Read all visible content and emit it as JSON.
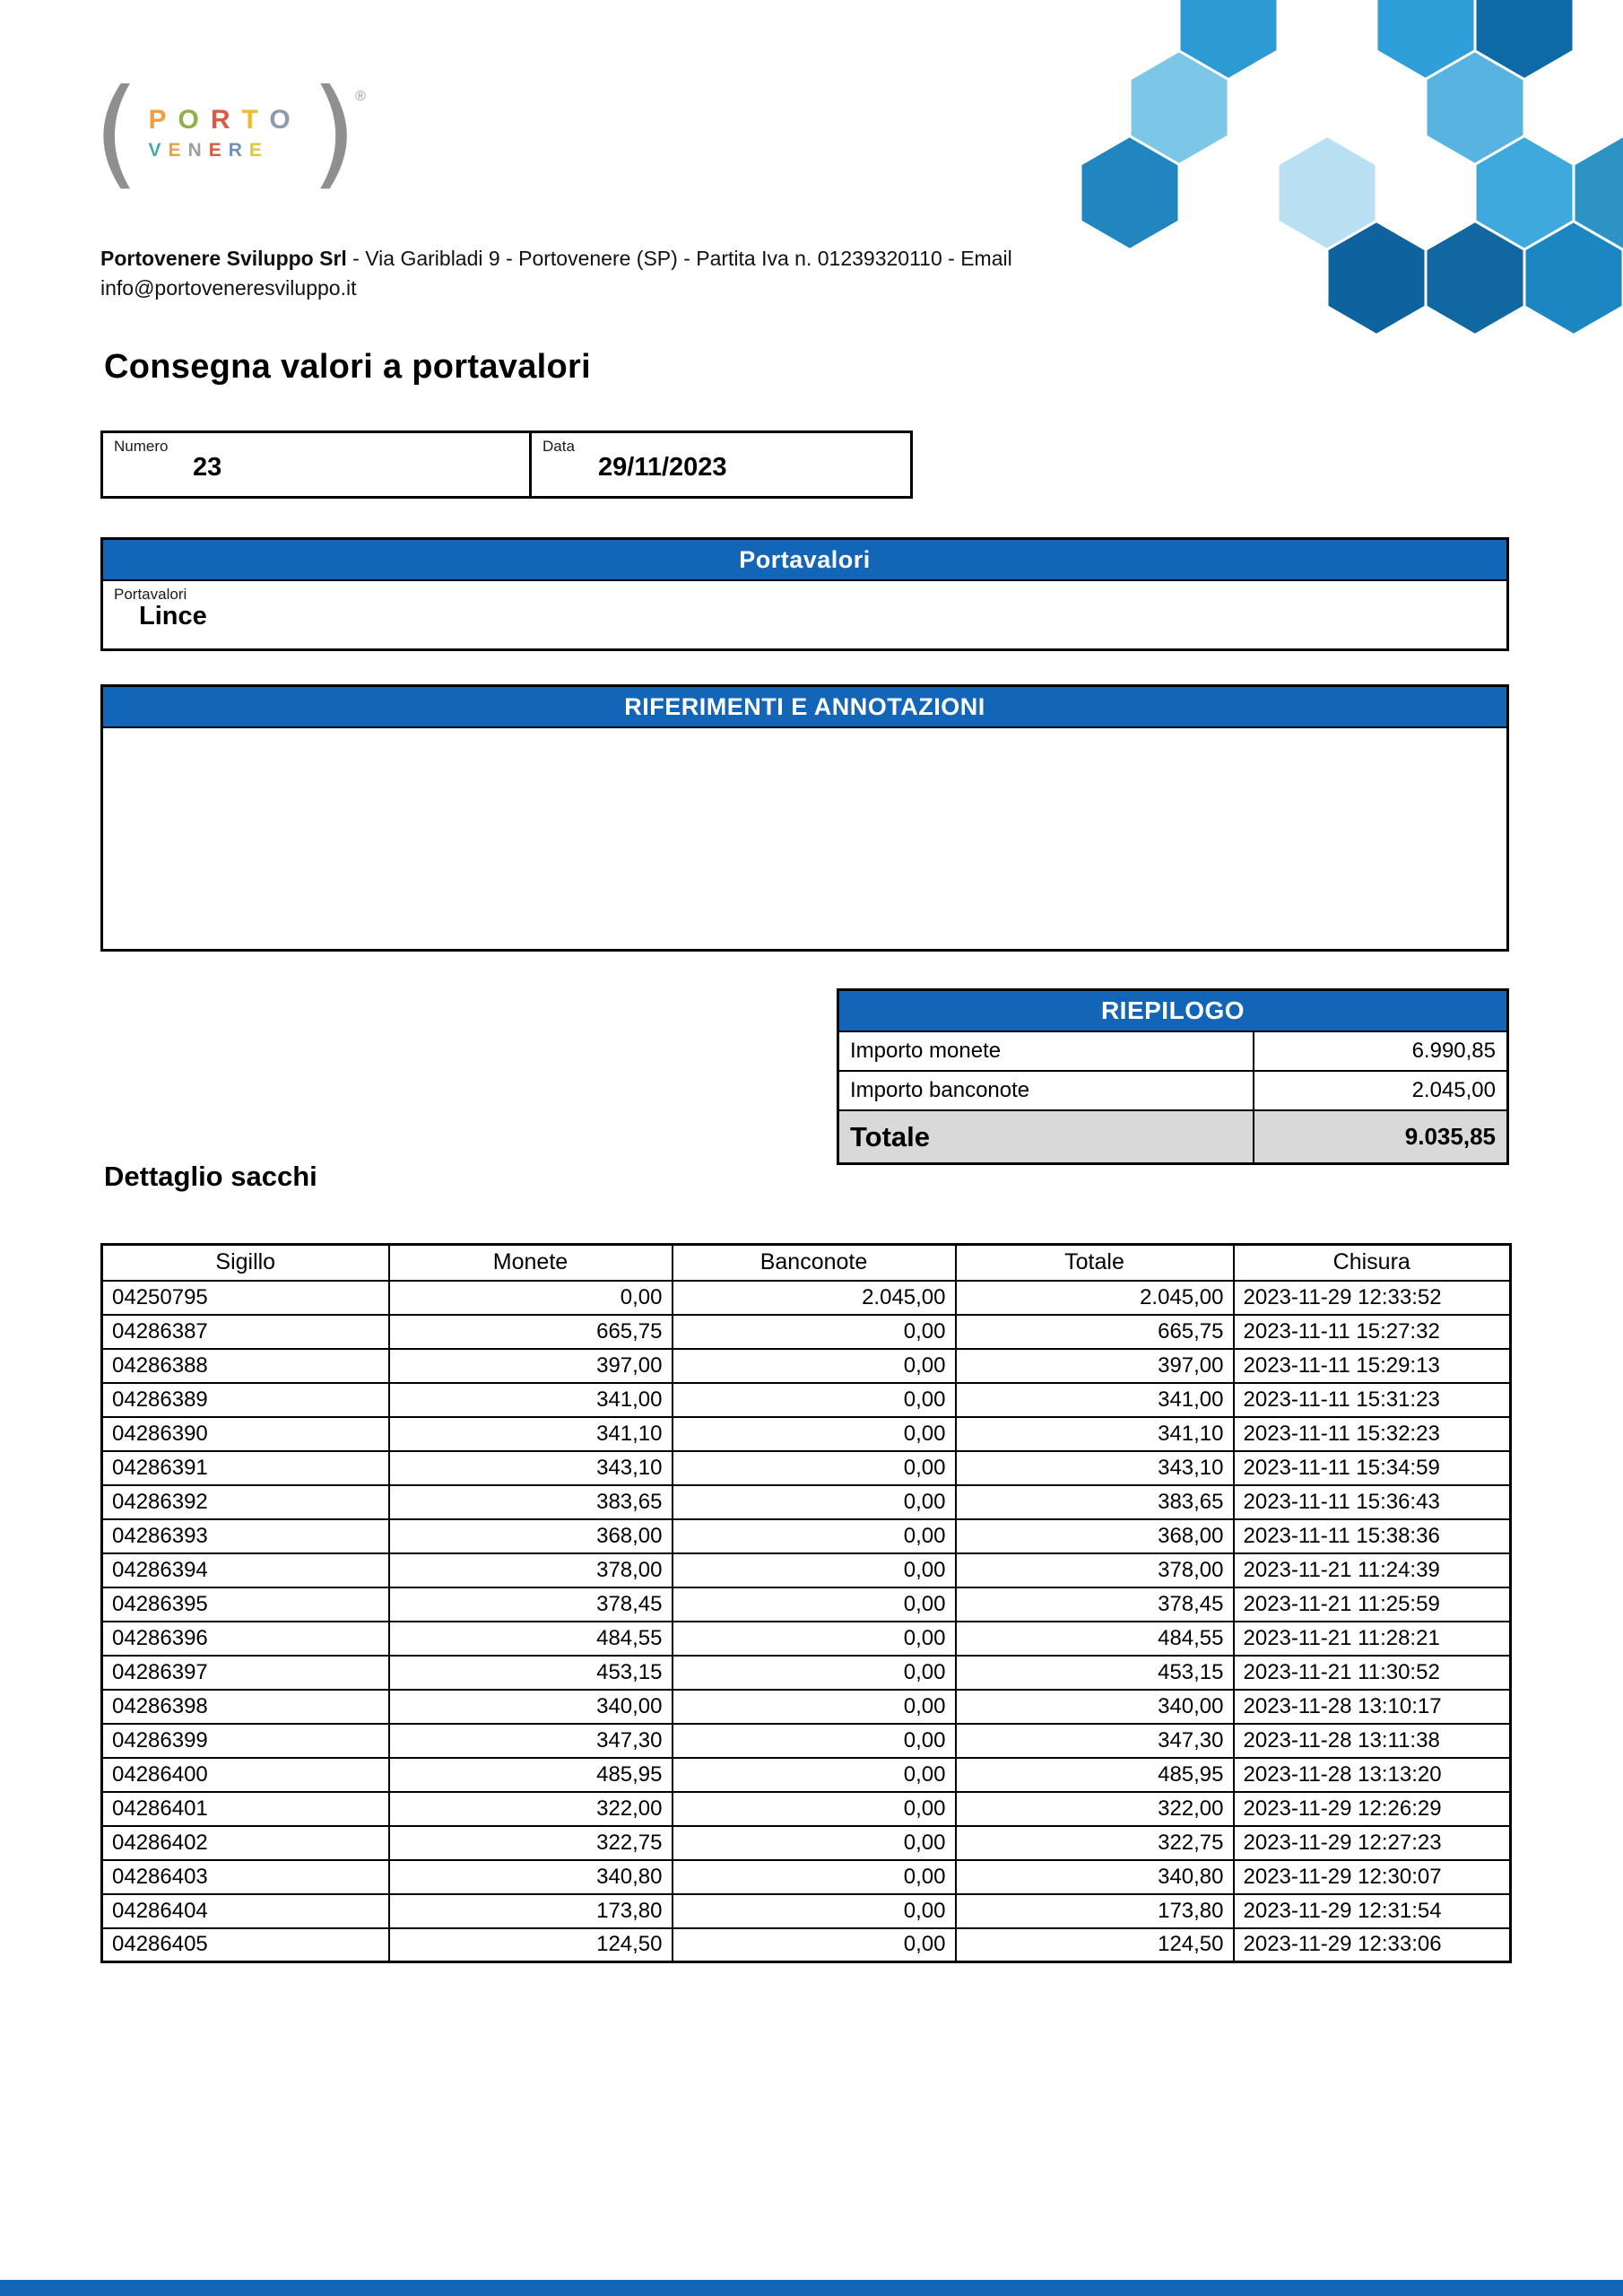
{
  "brand": {
    "colors": {
      "bar_blue": "#1365b7",
      "hex_palette": [
        "#2186c0",
        "#7cc6e8",
        "#2d9bd3",
        "#b9e0f2",
        "#0e629e",
        "#2e9fd8",
        "#57b3e0",
        "#0d6aa6",
        "#3fa9dd",
        "#11679f",
        "#1b86c2",
        "#2c93c4",
        "#1f8dc9"
      ]
    },
    "logo": {
      "line1": [
        {
          "ch": "P",
          "color": "#f09f3c"
        },
        {
          "ch": "O",
          "color": "#8fb04a"
        },
        {
          "ch": "R",
          "color": "#d95b43"
        },
        {
          "ch": "T",
          "color": "#f2b735"
        },
        {
          "ch": "O",
          "color": "#8c9bae"
        }
      ],
      "line2": [
        {
          "ch": "V",
          "color": "#47a8a4"
        },
        {
          "ch": "E",
          "color": "#f09f3c"
        },
        {
          "ch": "N",
          "color": "#9aa0a6"
        },
        {
          "ch": "E",
          "color": "#d95b43"
        },
        {
          "ch": "R",
          "color": "#6f8fb5"
        },
        {
          "ch": "E",
          "color": "#e3c43e"
        }
      ],
      "registered": "®"
    }
  },
  "company_line": {
    "bold": "Portovenere Sviluppo Srl",
    "rest": " - Via Garibladi 9 - Portovenere (SP) - Partita Iva n. 01239320110 - Email info@portoveneresviluppo.it"
  },
  "page_title": "Consegna valori a portavalori",
  "document": {
    "numero_label": "Numero",
    "numero_value": "23",
    "data_label": "Data",
    "data_value": "29/11/2023"
  },
  "portavalori": {
    "header": "Portavalori",
    "label": "Portavalori",
    "value": "Lince"
  },
  "annotazioni": {
    "header": "RIFERIMENTI E ANNOTAZIONI"
  },
  "riepilogo": {
    "header": "RIEPILOGO",
    "rows": [
      {
        "label": "Importo monete",
        "value": "6.990,85"
      },
      {
        "label": "Importo banconote",
        "value": "2.045,00"
      }
    ],
    "total": {
      "label": "Totale",
      "value": "9.035,85"
    }
  },
  "dettaglio": {
    "title": "Dettaglio sacchi",
    "columns": [
      "Sigillo",
      "Monete",
      "Banconote",
      "Totale",
      "Chisura"
    ],
    "rows": [
      [
        "04250795",
        "0,00",
        "2.045,00",
        "2.045,00",
        "2023-11-29 12:33:52"
      ],
      [
        "04286387",
        "665,75",
        "0,00",
        "665,75",
        "2023-11-11 15:27:32"
      ],
      [
        "04286388",
        "397,00",
        "0,00",
        "397,00",
        "2023-11-11 15:29:13"
      ],
      [
        "04286389",
        "341,00",
        "0,00",
        "341,00",
        "2023-11-11 15:31:23"
      ],
      [
        "04286390",
        "341,10",
        "0,00",
        "341,10",
        "2023-11-11 15:32:23"
      ],
      [
        "04286391",
        "343,10",
        "0,00",
        "343,10",
        "2023-11-11 15:34:59"
      ],
      [
        "04286392",
        "383,65",
        "0,00",
        "383,65",
        "2023-11-11 15:36:43"
      ],
      [
        "04286393",
        "368,00",
        "0,00",
        "368,00",
        "2023-11-11 15:38:36"
      ],
      [
        "04286394",
        "378,00",
        "0,00",
        "378,00",
        "2023-11-21 11:24:39"
      ],
      [
        "04286395",
        "378,45",
        "0,00",
        "378,45",
        "2023-11-21 11:25:59"
      ],
      [
        "04286396",
        "484,55",
        "0,00",
        "484,55",
        "2023-11-21 11:28:21"
      ],
      [
        "04286397",
        "453,15",
        "0,00",
        "453,15",
        "2023-11-21 11:30:52"
      ],
      [
        "04286398",
        "340,00",
        "0,00",
        "340,00",
        "2023-11-28 13:10:17"
      ],
      [
        "04286399",
        "347,30",
        "0,00",
        "347,30",
        "2023-11-28 13:11:38"
      ],
      [
        "04286400",
        "485,95",
        "0,00",
        "485,95",
        "2023-11-28 13:13:20"
      ],
      [
        "04286401",
        "322,00",
        "0,00",
        "322,00",
        "2023-11-29 12:26:29"
      ],
      [
        "04286402",
        "322,75",
        "0,00",
        "322,75",
        "2023-11-29 12:27:23"
      ],
      [
        "04286403",
        "340,80",
        "0,00",
        "340,80",
        "2023-11-29 12:30:07"
      ],
      [
        "04286404",
        "173,80",
        "0,00",
        "173,80",
        "2023-11-29 12:31:54"
      ],
      [
        "04286405",
        "124,50",
        "0,00",
        "124,50",
        "2023-11-29 12:33:06"
      ]
    ]
  }
}
